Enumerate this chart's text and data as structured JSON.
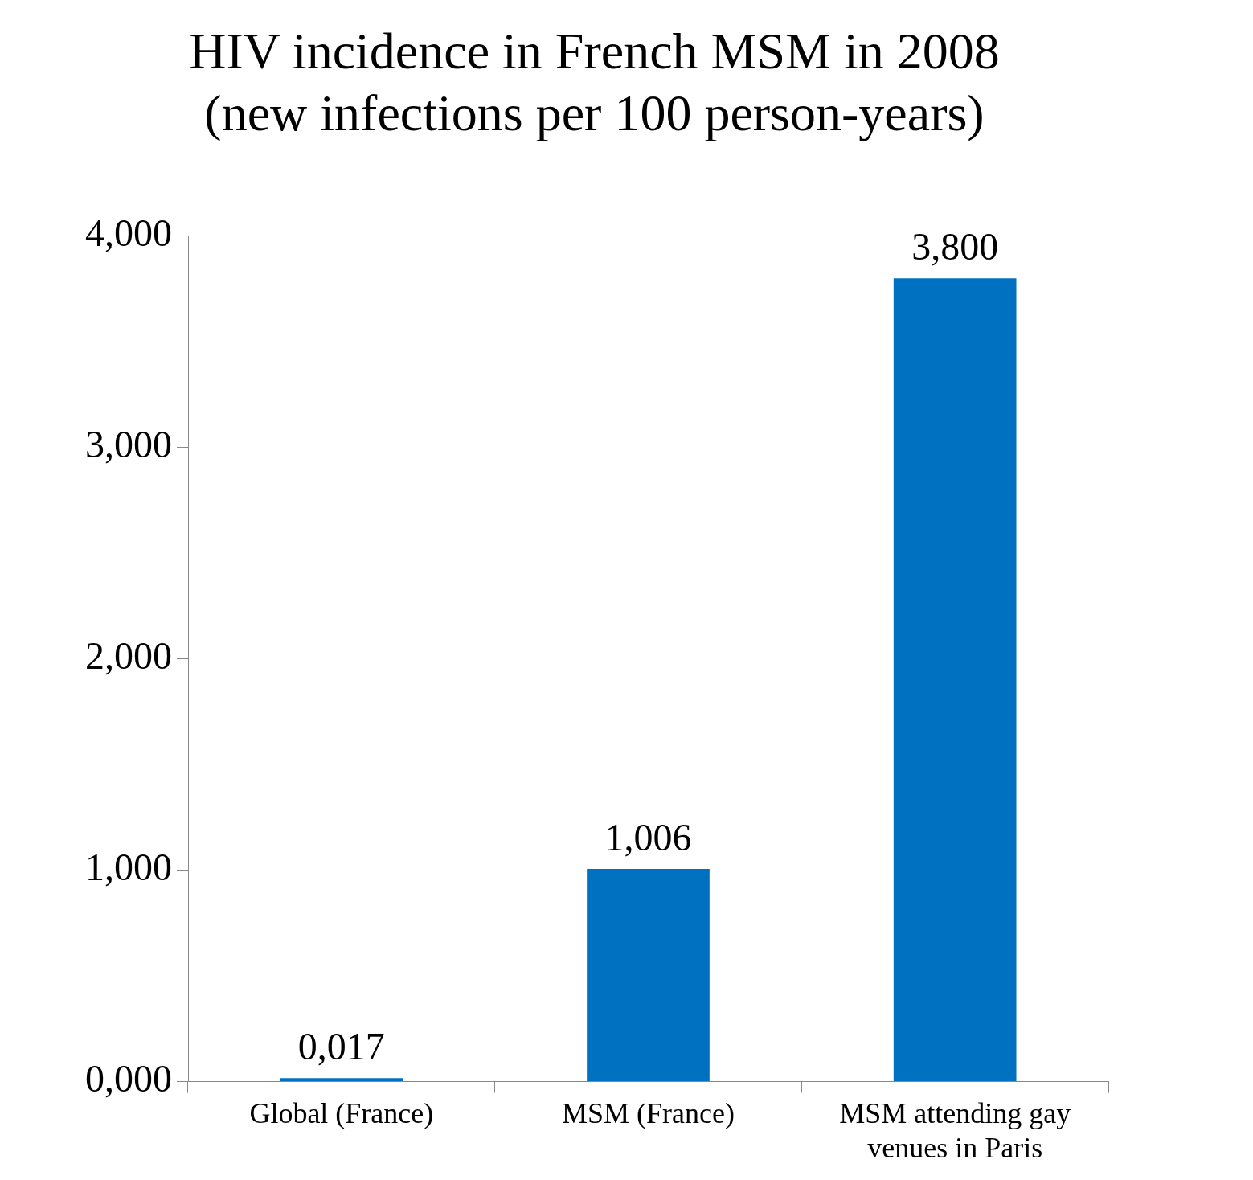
{
  "chart_data": {
    "type": "bar",
    "title": "HIV incidence in French MSM in 2008",
    "subtitle": "(new infections per 100 person-years)",
    "categories": [
      "Global (France)",
      "MSM (France)",
      "MSM attending gay venues in Paris"
    ],
    "values": [
      0.017,
      1.006,
      3.8
    ],
    "value_labels": [
      "0,017",
      "1,006",
      "3,800"
    ],
    "color": "#0070c0",
    "ylim": [
      0,
      4
    ],
    "yticks": [
      {
        "value": 0,
        "label": "0,000"
      },
      {
        "value": 1,
        "label": "1,000"
      },
      {
        "value": 2,
        "label": "2,000"
      },
      {
        "value": 3,
        "label": "3,000"
      },
      {
        "value": 4,
        "label": "4,000"
      }
    ],
    "grid": false,
    "legend": false
  }
}
